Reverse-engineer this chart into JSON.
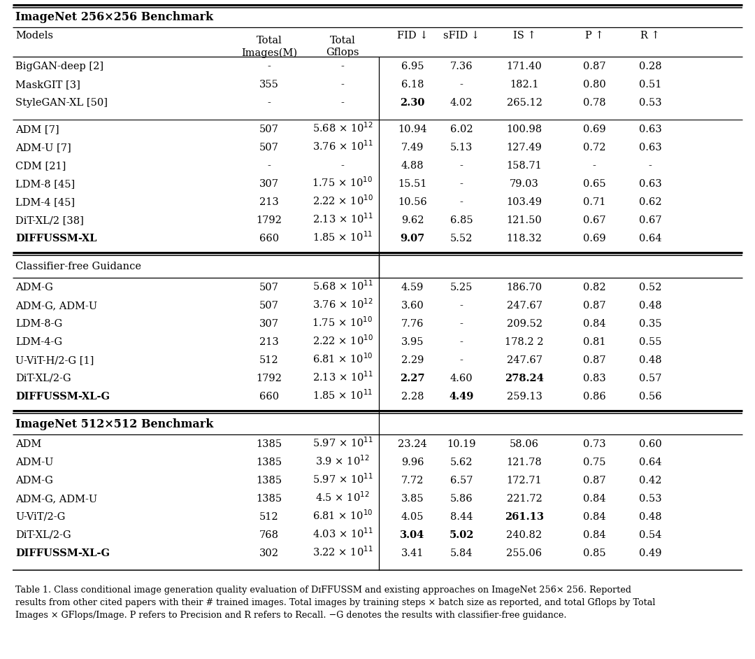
{
  "section1_title": "ImageNet 256×256 Benchmark",
  "section2_title": "Classifier-free Guidance",
  "section3_title": "ImageNet 512×512 Benchmark",
  "section1_rows": [
    [
      "BigGAN-deep [2]",
      "-",
      "-",
      "6.95",
      "7.36",
      "171.40",
      "0.87",
      "0.28",
      false,
      false,
      false,
      false
    ],
    [
      "MaskGIT [3]",
      "355",
      "-",
      "6.18",
      "-",
      "182.1",
      "0.80",
      "0.51",
      false,
      false,
      false,
      false
    ],
    [
      "StyleGAN-XL [50]",
      "-",
      "-",
      "2.30",
      "4.02",
      "265.12",
      "0.78",
      "0.53",
      true,
      false,
      false,
      false
    ]
  ],
  "section1_rows2": [
    [
      "ADM [7]",
      "507",
      "5.68 × 10$^{12}$",
      "10.94",
      "6.02",
      "100.98",
      "0.69",
      "0.63",
      false,
      false,
      false,
      false
    ],
    [
      "ADM-U [7]",
      "507",
      "3.76 × 10$^{11}$",
      "7.49",
      "5.13",
      "127.49",
      "0.72",
      "0.63",
      false,
      false,
      false,
      false
    ],
    [
      "CDM [21]",
      "-",
      "-",
      "4.88",
      "-",
      "158.71",
      "-",
      "-",
      false,
      false,
      false,
      false
    ],
    [
      "LDM-8 [45]",
      "307",
      "1.75 × 10$^{10}$",
      "15.51",
      "-",
      "79.03",
      "0.65",
      "0.63",
      false,
      false,
      false,
      false
    ],
    [
      "LDM-4 [45]",
      "213",
      "2.22 × 10$^{10}$",
      "10.56",
      "-",
      "103.49",
      "0.71",
      "0.62",
      false,
      false,
      false,
      false
    ],
    [
      "DiT-XL/2 [38]",
      "1792",
      "2.13 × 10$^{11}$",
      "9.62",
      "6.85",
      "121.50",
      "0.67",
      "0.67",
      false,
      false,
      false,
      false
    ],
    [
      "DIFFUSSM-XL",
      "660",
      "1.85 × 10$^{11}$",
      "9.07",
      "5.52",
      "118.32",
      "0.69",
      "0.64",
      true,
      false,
      false,
      false
    ]
  ],
  "section1_rows2_bold": [
    [
      false,
      false,
      false,
      false,
      false,
      false,
      false,
      false
    ],
    [
      false,
      false,
      false,
      false,
      false,
      false,
      false,
      false
    ],
    [
      false,
      false,
      false,
      false,
      false,
      false,
      false,
      false
    ],
    [
      false,
      false,
      false,
      false,
      false,
      false,
      false,
      false
    ],
    [
      false,
      false,
      false,
      false,
      false,
      false,
      false,
      false
    ],
    [
      false,
      false,
      false,
      false,
      false,
      false,
      false,
      false
    ],
    [
      true,
      false,
      false,
      true,
      false,
      false,
      false,
      false
    ]
  ],
  "section1_bold": [
    [
      false,
      false,
      false,
      false,
      false,
      false,
      false,
      false
    ],
    [
      false,
      false,
      false,
      false,
      false,
      false,
      false,
      false
    ],
    [
      false,
      false,
      false,
      true,
      false,
      false,
      false,
      false
    ]
  ],
  "section2_rows": [
    [
      "ADM-G",
      "507",
      "5.68 × 10$^{11}$",
      "4.59",
      "5.25",
      "186.70",
      "0.82",
      "0.52",
      false
    ],
    [
      "ADM-G, ADM-U",
      "507",
      "3.76 × 10$^{12}$",
      "3.60",
      "-",
      "247.67",
      "0.87",
      "0.48",
      false
    ],
    [
      "LDM-8-G",
      "307",
      "1.75 × 10$^{10}$",
      "7.76",
      "-",
      "209.52",
      "0.84",
      "0.35",
      false
    ],
    [
      "LDM-4-G",
      "213",
      "2.22 × 10$^{10}$",
      "3.95",
      "-",
      "178.2 2",
      "0.81",
      "0.55",
      false
    ],
    [
      "U-ViT-H/2-G [1]",
      "512",
      "6.81 × 10$^{10}$",
      "2.29",
      "-",
      "247.67",
      "0.87",
      "0.48",
      false
    ],
    [
      "DiT-XL/2-G",
      "1792",
      "2.13 × 10$^{11}$",
      "2.27",
      "4.60",
      "278.24",
      "0.83",
      "0.57",
      false
    ],
    [
      "DIFFUSSM-XL-G",
      "660",
      "1.85 × 10$^{11}$",
      "2.28",
      "4.49",
      "259.13",
      "0.86",
      "0.56",
      true
    ]
  ],
  "section2_bold": [
    [
      false,
      false,
      false,
      false,
      false,
      false,
      false,
      false
    ],
    [
      false,
      false,
      false,
      false,
      false,
      false,
      false,
      false
    ],
    [
      false,
      false,
      false,
      false,
      false,
      false,
      false,
      false
    ],
    [
      false,
      false,
      false,
      false,
      false,
      false,
      false,
      false
    ],
    [
      false,
      false,
      false,
      false,
      false,
      false,
      false,
      false
    ],
    [
      false,
      false,
      false,
      true,
      false,
      true,
      false,
      false
    ],
    [
      true,
      false,
      false,
      false,
      true,
      false,
      false,
      false
    ]
  ],
  "section3_rows": [
    [
      "ADM",
      "1385",
      "5.97 × 10$^{11}$",
      "23.24",
      "10.19",
      "58.06",
      "0.73",
      "0.60",
      false
    ],
    [
      "ADM-U",
      "1385",
      "3.9 × 10$^{12}$",
      "9.96",
      "5.62",
      "121.78",
      "0.75",
      "0.64",
      false
    ],
    [
      "ADM-G",
      "1385",
      "5.97 × 10$^{11}$",
      "7.72",
      "6.57",
      "172.71",
      "0.87",
      "0.42",
      false
    ],
    [
      "ADM-G, ADM-U",
      "1385",
      "4.5 × 10$^{12}$",
      "3.85",
      "5.86",
      "221.72",
      "0.84",
      "0.53",
      false
    ],
    [
      "U-ViT/2-G",
      "512",
      "6.81 × 10$^{10}$",
      "4.05",
      "8.44",
      "261.13",
      "0.84",
      "0.48",
      false
    ],
    [
      "DiT-XL/2-G",
      "768",
      "4.03 × 10$^{11}$",
      "3.04",
      "5.02",
      "240.82",
      "0.84",
      "0.54",
      false
    ],
    [
      "DIFFUSSM-XL-G",
      "302",
      "3.22 × 10$^{11}$",
      "3.41",
      "5.84",
      "255.06",
      "0.85",
      "0.49",
      true
    ]
  ],
  "section3_bold": [
    [
      false,
      false,
      false,
      false,
      false,
      false,
      false,
      false
    ],
    [
      false,
      false,
      false,
      false,
      false,
      false,
      false,
      false
    ],
    [
      false,
      false,
      false,
      false,
      false,
      false,
      false,
      false
    ],
    [
      false,
      false,
      false,
      false,
      false,
      false,
      false,
      false
    ],
    [
      false,
      false,
      false,
      false,
      false,
      true,
      false,
      false
    ],
    [
      false,
      false,
      false,
      true,
      true,
      false,
      false,
      false
    ],
    [
      true,
      false,
      false,
      false,
      false,
      false,
      false,
      false
    ]
  ],
  "caption_line1": "Table 1. Class conditional image generation quality evaluation of D",
  "caption_diffussm": "IFF",
  "caption_line1b": "USSM and existing approaches on ImageNet 256× 256. Reported",
  "caption_line2": "results from other cited papers with their # trained images. Total images by training steps × batch size as reported, and total Gflops by Total",
  "caption_line3": "Images × GFlops/Image. P refers to Precision and R refers to Recall. −G denotes the results with classifier-free guidance.",
  "bg_color": "#ffffff"
}
